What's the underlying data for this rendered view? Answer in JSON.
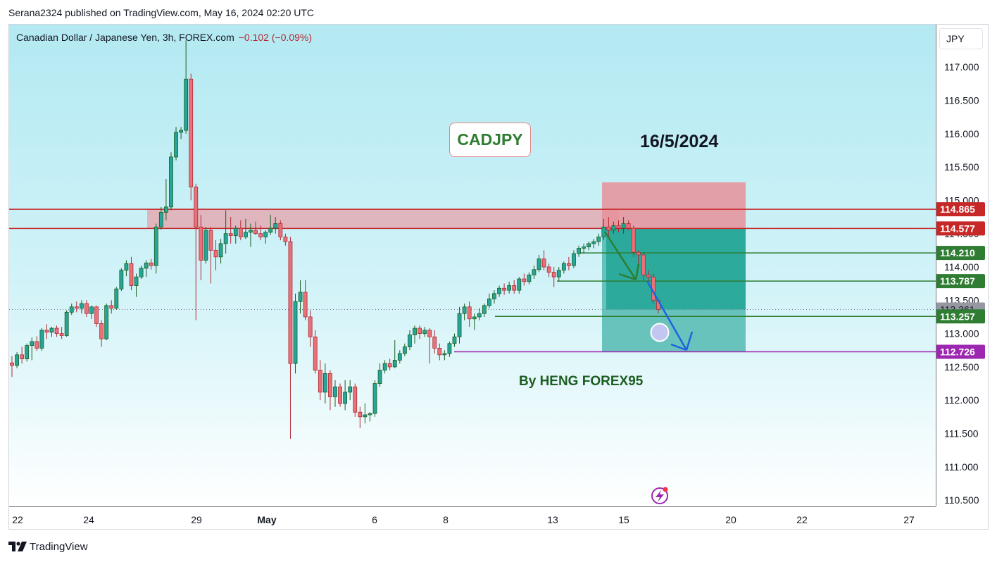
{
  "header": {
    "published": "Serana2324 published on TradingView.com, May 16, 2024 02:20 UTC"
  },
  "symbol": {
    "name": "Canadian Dollar / Japanese Yen, 3h, FOREX.com",
    "change": "−0.102 (−0.09%)"
  },
  "currency_button": "JPY",
  "annotations": {
    "pair_label": "CADJPY",
    "date_label": "16/5/2024",
    "author_label": "By HENG FOREX95"
  },
  "brand": {
    "name": "TradingView",
    "logo": "tradingview-logo-icon"
  },
  "colors": {
    "up": "#26a69a",
    "up_border": "#1b5e20",
    "down": "#e8727a",
    "down_border": "#b22833",
    "resistance": "#c62828",
    "target": "#2e7d32",
    "final_target": "#9c27b0",
    "last_price": "#9598a1",
    "zone_fill": "#e8a0a8",
    "profit_fill": "#1aa192"
  },
  "chart_data": {
    "type": "candlestick",
    "ylim": [
      110.4,
      117.6
    ],
    "y_ticks": [
      "110.500",
      "111.000",
      "111.500",
      "112.000",
      "112.500",
      "113.000",
      "113.500",
      "114.000",
      "114.500",
      "115.000",
      "115.500",
      "116.000",
      "116.500",
      "117.000"
    ],
    "x_ticks": [
      "22",
      "24",
      "29",
      "May",
      "6",
      "8",
      "13",
      "15",
      "20",
      "22",
      "27"
    ],
    "price_levels": [
      {
        "value": "114.865",
        "kind": "resistance"
      },
      {
        "value": "114.577",
        "kind": "resistance"
      },
      {
        "value": "114.210",
        "kind": "target"
      },
      {
        "value": "113.787",
        "kind": "target"
      },
      {
        "value": "113.361",
        "kind": "last"
      },
      {
        "value": "113.257",
        "kind": "target"
      },
      {
        "value": "112.726",
        "kind": "final_target"
      }
    ],
    "resistance_zone": [
      114.577,
      114.865
    ],
    "short_position": {
      "stop": 115.27,
      "entry": 114.58,
      "target": 112.726,
      "current": 113.361
    },
    "candles": [
      [
        112.56,
        112.66,
        112.35,
        112.52
      ],
      [
        112.52,
        112.72,
        112.48,
        112.68
      ],
      [
        112.68,
        112.8,
        112.55,
        112.62
      ],
      [
        112.62,
        112.85,
        112.58,
        112.82
      ],
      [
        112.82,
        112.94,
        112.6,
        112.88
      ],
      [
        112.88,
        112.96,
        112.74,
        112.78
      ],
      [
        112.78,
        113.08,
        112.74,
        113.05
      ],
      [
        113.05,
        113.14,
        112.92,
        113.02
      ],
      [
        113.02,
        113.1,
        112.95,
        113.08
      ],
      [
        113.08,
        113.12,
        112.95,
        113.0
      ],
      [
        113.0,
        113.1,
        112.92,
        112.97
      ],
      [
        112.97,
        113.35,
        112.95,
        113.32
      ],
      [
        113.32,
        113.45,
        113.28,
        113.4
      ],
      [
        113.4,
        113.48,
        113.32,
        113.38
      ],
      [
        113.38,
        113.5,
        113.3,
        113.45
      ],
      [
        113.45,
        113.5,
        113.25,
        113.3
      ],
      [
        113.3,
        113.42,
        113.22,
        113.4
      ],
      [
        113.4,
        113.42,
        113.1,
        113.15
      ],
      [
        113.15,
        113.2,
        112.8,
        112.92
      ],
      [
        112.92,
        113.45,
        112.9,
        113.42
      ],
      [
        113.42,
        113.5,
        113.3,
        113.38
      ],
      [
        113.38,
        113.7,
        113.36,
        113.67
      ],
      [
        113.67,
        113.98,
        113.64,
        113.95
      ],
      [
        113.95,
        114.1,
        113.86,
        114.05
      ],
      [
        114.05,
        114.15,
        113.65,
        113.72
      ],
      [
        113.72,
        113.9,
        113.55,
        113.85
      ],
      [
        113.85,
        114.02,
        113.82,
        113.98
      ],
      [
        113.98,
        114.1,
        113.85,
        114.06
      ],
      [
        114.06,
        114.12,
        113.96,
        114.02
      ],
      [
        114.02,
        114.65,
        113.9,
        114.6
      ],
      [
        114.6,
        114.9,
        114.56,
        114.82
      ],
      [
        114.82,
        115.32,
        114.7,
        114.9
      ],
      [
        114.9,
        115.72,
        114.85,
        115.65
      ],
      [
        115.65,
        116.1,
        115.6,
        116.02
      ],
      [
        116.02,
        116.1,
        115.92,
        116.05
      ],
      [
        116.05,
        117.4,
        116.0,
        116.82
      ],
      [
        116.82,
        116.9,
        115.0,
        115.2
      ],
      [
        115.2,
        115.25,
        113.2,
        114.6
      ],
      [
        114.6,
        114.78,
        113.8,
        114.1
      ],
      [
        114.1,
        114.6,
        114.05,
        114.55
      ],
      [
        114.55,
        114.6,
        113.75,
        114.25
      ],
      [
        114.25,
        114.4,
        113.95,
        114.15
      ],
      [
        114.15,
        114.42,
        114.05,
        114.35
      ],
      [
        114.35,
        114.85,
        114.2,
        114.5
      ],
      [
        114.5,
        114.75,
        114.35,
        114.47
      ],
      [
        114.47,
        114.62,
        114.35,
        114.58
      ],
      [
        114.58,
        114.7,
        114.4,
        114.45
      ],
      [
        114.45,
        114.72,
        114.42,
        114.52
      ],
      [
        114.52,
        114.65,
        114.3,
        114.55
      ],
      [
        114.55,
        114.68,
        114.48,
        114.5
      ],
      [
        114.5,
        114.62,
        114.4,
        114.45
      ],
      [
        114.45,
        114.55,
        114.35,
        114.52
      ],
      [
        114.52,
        114.78,
        114.48,
        114.58
      ],
      [
        114.58,
        114.75,
        114.5,
        114.65
      ],
      [
        114.65,
        114.7,
        114.4,
        114.45
      ],
      [
        114.45,
        114.5,
        114.32,
        114.38
      ],
      [
        114.38,
        114.45,
        111.42,
        112.55
      ],
      [
        112.55,
        113.6,
        112.4,
        113.48
      ],
      [
        113.48,
        113.8,
        113.3,
        113.62
      ],
      [
        113.62,
        113.8,
        113.2,
        113.25
      ],
      [
        113.25,
        113.35,
        112.8,
        112.95
      ],
      [
        112.95,
        113.05,
        112.4,
        112.45
      ],
      [
        112.45,
        112.6,
        112.0,
        112.12
      ],
      [
        112.12,
        112.55,
        111.95,
        112.4
      ],
      [
        112.4,
        112.45,
        111.85,
        112.05
      ],
      [
        112.05,
        112.3,
        111.9,
        112.2
      ],
      [
        112.2,
        112.25,
        111.9,
        111.95
      ],
      [
        111.95,
        112.3,
        111.85,
        112.12
      ],
      [
        112.12,
        112.3,
        112.0,
        112.2
      ],
      [
        112.2,
        112.25,
        111.75,
        111.82
      ],
      [
        111.82,
        111.9,
        111.58,
        111.75
      ],
      [
        111.75,
        111.95,
        111.65,
        111.78
      ],
      [
        111.78,
        111.82,
        111.68,
        111.8
      ],
      [
        111.8,
        112.3,
        111.75,
        112.25
      ],
      [
        112.25,
        112.55,
        112.2,
        112.45
      ],
      [
        112.45,
        112.6,
        112.4,
        112.55
      ],
      [
        112.55,
        112.62,
        112.45,
        112.5
      ],
      [
        112.5,
        112.9,
        112.48,
        112.6
      ],
      [
        112.6,
        112.75,
        112.55,
        112.7
      ],
      [
        112.7,
        112.85,
        112.66,
        112.8
      ],
      [
        112.8,
        113.05,
        112.75,
        112.98
      ],
      [
        112.98,
        113.12,
        112.85,
        113.08
      ],
      [
        113.08,
        113.12,
        112.92,
        113.0
      ],
      [
        113.0,
        113.1,
        112.95,
        113.05
      ],
      [
        113.05,
        113.08,
        112.55,
        112.95
      ],
      [
        112.95,
        113.05,
        112.7,
        112.78
      ],
      [
        112.78,
        112.85,
        112.6,
        112.68
      ],
      [
        112.68,
        112.75,
        112.6,
        112.7
      ],
      [
        112.7,
        112.88,
        112.65,
        112.85
      ],
      [
        112.85,
        113.0,
        112.8,
        112.95
      ],
      [
        112.95,
        113.4,
        112.85,
        113.3
      ],
      [
        113.3,
        113.45,
        113.2,
        113.4
      ],
      [
        113.4,
        113.48,
        113.1,
        113.22
      ],
      [
        113.22,
        113.3,
        113.05,
        113.25
      ],
      [
        113.25,
        113.38,
        113.2,
        113.3
      ],
      [
        113.3,
        113.45,
        113.25,
        113.42
      ],
      [
        113.42,
        113.6,
        113.38,
        113.52
      ],
      [
        113.52,
        113.65,
        113.45,
        113.6
      ],
      [
        113.6,
        113.72,
        113.55,
        113.68
      ],
      [
        113.68,
        113.75,
        113.58,
        113.65
      ],
      [
        113.65,
        113.78,
        113.6,
        113.72
      ],
      [
        113.72,
        113.8,
        113.6,
        113.65
      ],
      [
        113.65,
        113.85,
        113.6,
        113.82
      ],
      [
        113.82,
        113.9,
        113.72,
        113.78
      ],
      [
        113.78,
        113.92,
        113.74,
        113.88
      ],
      [
        113.88,
        114.02,
        113.82,
        113.96
      ],
      [
        113.96,
        114.18,
        113.92,
        114.12
      ],
      [
        114.12,
        114.25,
        113.95,
        114.0
      ],
      [
        114.0,
        114.05,
        113.85,
        113.92
      ],
      [
        113.92,
        114.0,
        113.7,
        113.85
      ],
      [
        113.85,
        114.0,
        113.78,
        113.95
      ],
      [
        113.95,
        114.08,
        113.9,
        114.05
      ],
      [
        114.05,
        114.15,
        113.95,
        114.02
      ],
      [
        114.02,
        114.25,
        113.98,
        114.2
      ],
      [
        114.2,
        114.32,
        114.15,
        114.28
      ],
      [
        114.28,
        114.35,
        114.2,
        114.3
      ],
      [
        114.3,
        114.38,
        114.25,
        114.35
      ],
      [
        114.35,
        114.42,
        114.28,
        114.38
      ],
      [
        114.38,
        114.5,
        114.32,
        114.45
      ],
      [
        114.45,
        114.72,
        114.4,
        114.6
      ],
      [
        114.6,
        114.75,
        114.45,
        114.55
      ],
      [
        114.55,
        114.68,
        114.5,
        114.62
      ],
      [
        114.62,
        114.7,
        114.52,
        114.58
      ],
      [
        114.58,
        114.75,
        114.5,
        114.65
      ],
      [
        114.65,
        114.7,
        114.55,
        114.58
      ],
      [
        114.58,
        114.62,
        114.15,
        114.22
      ],
      [
        114.22,
        114.25,
        114.0,
        114.18
      ],
      [
        114.18,
        114.22,
        113.8,
        113.88
      ],
      [
        113.88,
        113.95,
        113.78,
        113.85
      ],
      [
        113.85,
        113.9,
        113.45,
        113.5
      ],
      [
        113.5,
        113.52,
        113.3,
        113.36
      ]
    ]
  }
}
